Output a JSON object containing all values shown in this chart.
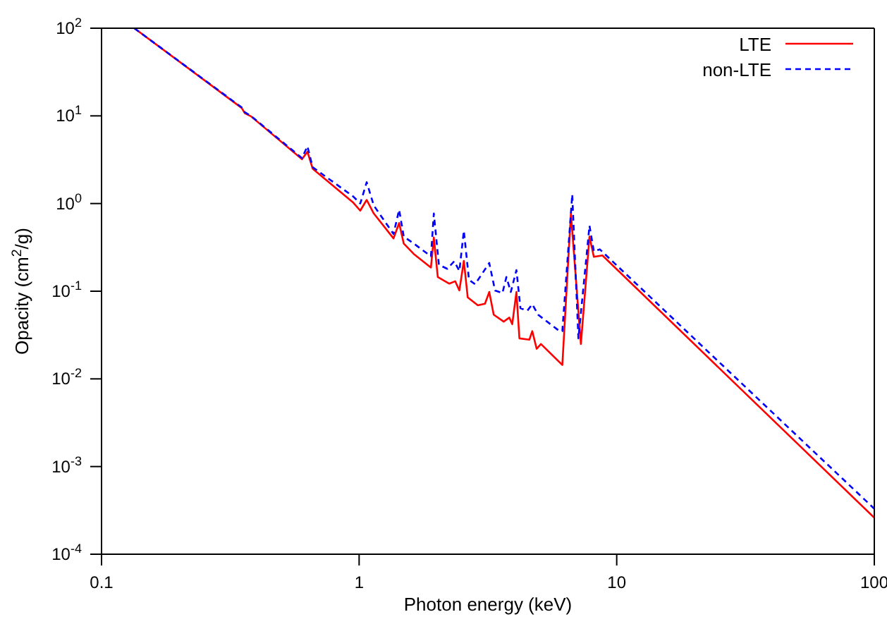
{
  "chart_data": {
    "type": "line",
    "xlabel": "Photon energy (keV)",
    "ylabel": "Opacity (cm$^{2}$/g)",
    "log": "xy",
    "xlim": [
      0.1,
      100
    ],
    "ylim": [
      0.0001,
      100
    ],
    "xticks": [
      0.1,
      1,
      10,
      100
    ],
    "yticks": [
      {
        "value": 0.0001,
        "label": "10$^{-4}$"
      },
      {
        "value": 0.001,
        "label": "10$^{-3}$"
      },
      {
        "value": 0.01,
        "label": "10$^{-2}$"
      },
      {
        "value": 0.1,
        "label": "10$^{-1}$"
      },
      {
        "value": 1,
        "label": "10$^{0}$"
      },
      {
        "value": 10,
        "label": "10$^{1}$"
      },
      {
        "value": 100,
        "label": "10$^{2}$"
      }
    ],
    "legend": "top right",
    "marker": "none",
    "series": [
      {
        "name": "LTE",
        "color": "#ff0000",
        "line_style": "solid",
        "x": [
          0.134,
          0.35,
          0.36,
          0.38,
          0.6,
          0.63,
          0.66,
          0.95,
          1.01,
          1.07,
          1.14,
          1.36,
          1.43,
          1.49,
          1.63,
          1.9,
          1.95,
          2.02,
          2.24,
          2.36,
          2.45,
          2.55,
          2.64,
          2.89,
          3.08,
          3.2,
          3.33,
          3.64,
          3.83,
          3.93,
          4.08,
          4.19,
          4.58,
          4.7,
          4.89,
          5.08,
          6.15,
          6.64,
          7.26,
          7.84,
          8.15,
          8.8,
          100
        ],
        "values": [
          100,
          12.3,
          10.7,
          9.9,
          3.2,
          3.9,
          2.5,
          1.02,
          0.83,
          1.1,
          0.77,
          0.4,
          0.6,
          0.35,
          0.266,
          0.186,
          0.41,
          0.145,
          0.122,
          0.13,
          0.102,
          0.222,
          0.085,
          0.069,
          0.072,
          0.098,
          0.054,
          0.045,
          0.05,
          0.042,
          0.098,
          0.029,
          0.028,
          0.035,
          0.022,
          0.025,
          0.0144,
          0.77,
          0.025,
          0.42,
          0.247,
          0.256,
          0.00026
        ]
      },
      {
        "name": "non-LTE",
        "color": "#0000ff",
        "line_style": "dashed",
        "x": [
          0.134,
          0.35,
          0.36,
          0.38,
          0.6,
          0.63,
          0.66,
          0.95,
          1.01,
          1.07,
          1.14,
          1.36,
          1.43,
          1.49,
          1.63,
          1.9,
          1.95,
          2.04,
          2.2,
          2.34,
          2.45,
          2.55,
          2.67,
          2.82,
          3.2,
          3.37,
          3.6,
          3.73,
          3.88,
          4.08,
          4.23,
          4.5,
          4.7,
          4.95,
          6.0,
          6.15,
          6.72,
          7.1,
          7.84,
          8.15,
          8.6,
          100
        ],
        "values": [
          100,
          12.5,
          11,
          10,
          3.3,
          4.5,
          2.6,
          1.2,
          1.0,
          1.75,
          0.95,
          0.45,
          0.85,
          0.42,
          0.35,
          0.25,
          0.77,
          0.2,
          0.18,
          0.22,
          0.17,
          0.49,
          0.135,
          0.12,
          0.21,
          0.102,
          0.095,
          0.145,
          0.098,
          0.174,
          0.064,
          0.06,
          0.071,
          0.054,
          0.035,
          0.035,
          1.27,
          0.029,
          0.56,
          0.285,
          0.3,
          0.00033
        ]
      }
    ]
  }
}
